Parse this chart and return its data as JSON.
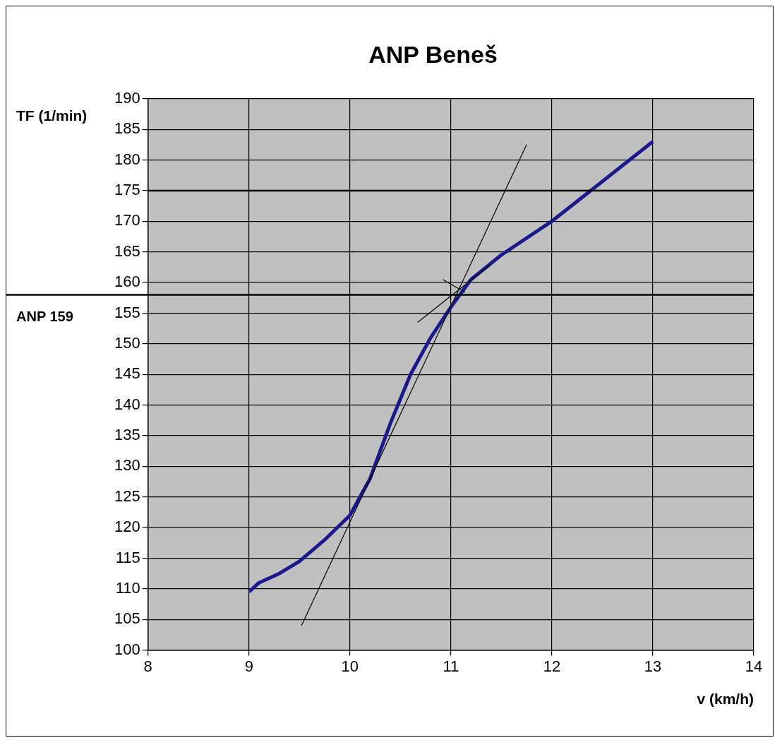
{
  "chart_data": {
    "type": "line",
    "title": "ANP Beneš",
    "xlabel": "v (km/h)",
    "ylabel": "TF (1/min)",
    "xlim": [
      8,
      14
    ],
    "xticks": [
      8,
      9,
      10,
      11,
      12,
      13,
      14
    ],
    "ylim": [
      100,
      190
    ],
    "yticks": [
      100,
      105,
      110,
      115,
      120,
      125,
      130,
      135,
      140,
      145,
      150,
      155,
      160,
      165,
      170,
      175,
      180,
      185,
      190
    ],
    "grid": true,
    "legend": false,
    "marker": "none",
    "series": [
      {
        "color": "#1a1a8c",
        "x": [
          9,
          9.1,
          9.3,
          9.5,
          9.75,
          10,
          10.2,
          10.4,
          10.6,
          10.8,
          11,
          11.2,
          11.5,
          12,
          12.5,
          13
        ],
        "values": [
          109.5,
          111,
          112.5,
          114.5,
          118,
          122,
          128,
          137,
          145,
          151,
          156,
          160.5,
          164.5,
          170,
          176.5,
          183
        ]
      },
      {
        "color": "#000000",
        "x": [
          9.52,
          11.75
        ],
        "values": [
          104,
          182.5
        ]
      },
      {
        "color": "#000000",
        "x": [
          10.67,
          11.4
        ],
        "values": [
          153.5,
          163
        ]
      },
      {
        "color": "#000000",
        "x": [
          10.92,
          11.14
        ],
        "values": [
          160.5,
          158.4
        ]
      }
    ],
    "ref_lines": [
      {
        "axis": "y",
        "value": 175,
        "color": "#000000"
      },
      {
        "axis": "y",
        "value": 158,
        "label": "ANP 159",
        "color": "#000000"
      }
    ]
  }
}
